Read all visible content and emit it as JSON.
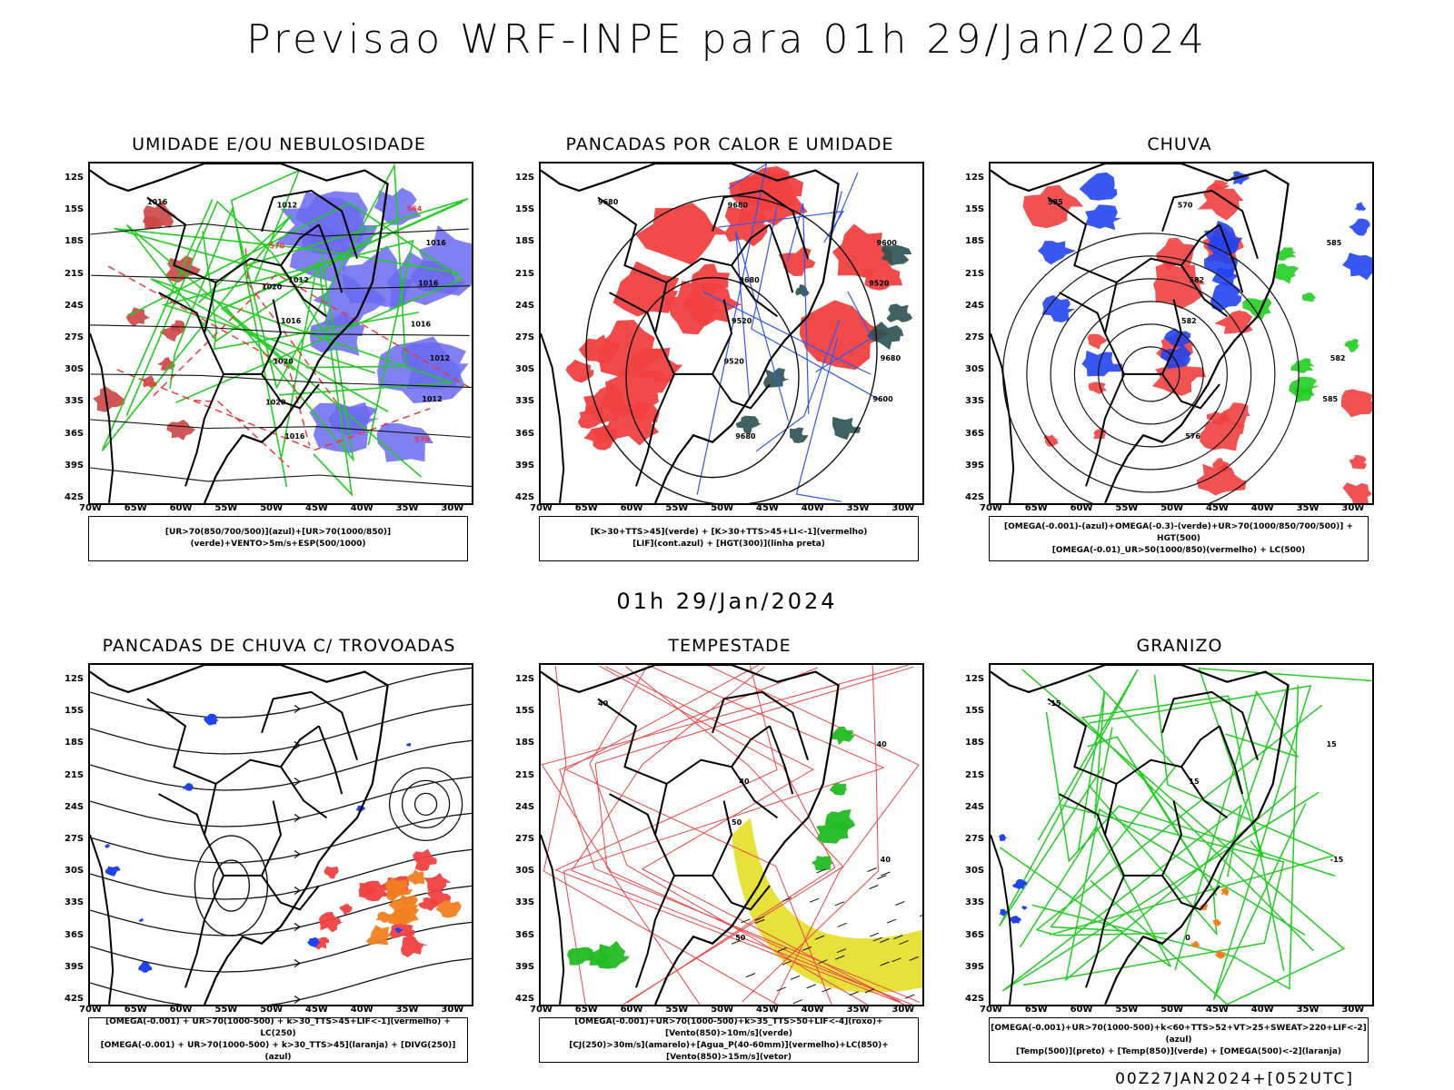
{
  "title": "Previsao WRF-INPE  para 01h 29/Jan/2024",
  "mid_title": "01h 29/Jan/2024",
  "footer": "00Z27JAN2024+[052UTC]",
  "lat_labels": [
    "12S",
    "15S",
    "18S",
    "21S",
    "24S",
    "27S",
    "30S",
    "33S",
    "36S",
    "39S",
    "42S"
  ],
  "lon_labels": [
    "70W",
    "65W",
    "60W",
    "55W",
    "50W",
    "45W",
    "40W",
    "35W",
    "30W"
  ],
  "panels": [
    {
      "title": "UMIDADE E/OU NEBULOSIDADE",
      "legend": [
        "[UR>70(850/700/500)](azul)+[UR>70(1000/850)](verde)+VENTO>5m/s+ESP(500/1000)"
      ],
      "contour_labels": [
        "1016",
        "1012",
        "1012",
        "1016",
        "1016",
        "1016",
        "1012",
        "1012",
        "1016",
        "1020",
        "570",
        "570",
        "1016",
        "1020",
        "564",
        "1020"
      ],
      "colors": {
        "fill": "#6a6af0",
        "line1": "#22cc22",
        "line2": "#ee3333"
      }
    },
    {
      "title": "PANCADAS POR CALOR E UMIDADE",
      "legend": [
        "[K>30+TTS>45](verde) + [K>30+TTS>45+LI<-1](vermelho)",
        "[LIF](cont.azul) + [HGT(300)](linha preta)"
      ],
      "contour_labels": [
        "9680",
        "9680",
        "9680",
        "9680",
        "9600",
        "9520",
        "9600",
        "9680",
        "9520",
        "9520"
      ],
      "colors": {
        "fill": "#f04040",
        "line1": "#2a5050",
        "line2": "#3355ee"
      }
    },
    {
      "title": "CHUVA",
      "legend": [
        "[OMEGA(-0.001)-(azul)+OMEGA(-0.3)-(verde)+UR>70(1000/850/700/500)] + HGT(500)",
        "[OMEGA(-0.01)_UR>50(1000/850)(vermelho) + LC(500)"
      ],
      "contour_labels": [
        "585",
        "582",
        "582",
        "576",
        "585",
        "582",
        "585",
        "570"
      ],
      "colors": {
        "fill": "#f04040",
        "line1": "#2244ee",
        "line2": "#22cc22"
      }
    },
    {
      "title": "PANCADAS DE CHUVA C/ TROVOADAS",
      "legend": [
        "[OMEGA(-0.001) + UR>70(1000-500) + k>30_TTS>45+LIF<-1](vermelho) + LC(250)",
        "[OMEGA(-0.001) + UR>70(1000-500) + k>30_TTS>45](laranja) + [DIVG(250)](azul)"
      ],
      "contour_labels": [],
      "colors": {
        "fill": "#f04040",
        "line1": "#f08020",
        "line2": "#2244ee"
      }
    },
    {
      "title": "TEMPESTADE",
      "legend": [
        "[OMEGA(-0.001)+UR>70(1000-500)+k>35_TTS>50+LIF<-4](roxo)+[Vento(850)>10m/s](verde)",
        "[CJ(250)>30m/s](amarelo)+[Agua_P(40-60mm)](vermelho)+LC(850)+[Vento(850)>15m/s](vetor)"
      ],
      "contour_labels": [
        "40",
        "40",
        "40",
        "50",
        "40",
        "50"
      ],
      "colors": {
        "fill": "#e6e030",
        "line1": "#ee4444",
        "line2": "#22bb22"
      }
    },
    {
      "title": "GRANIZO",
      "legend": [
        "[OMEGA(-0.001)+UR>70(1000-500)+k<60+TTS>52+VT>25+SWEAT>220+LIF<-2](azul)",
        "[Temp(500)](preto) + [Temp(850)](verde) + [OMEGA(500)<-2](laranja)"
      ],
      "contour_labels": [
        "-15",
        "15",
        "-15",
        "0",
        "15"
      ],
      "colors": {
        "fill": "#f08020",
        "line1": "#22cc22",
        "line2": "#2244ee"
      }
    }
  ]
}
